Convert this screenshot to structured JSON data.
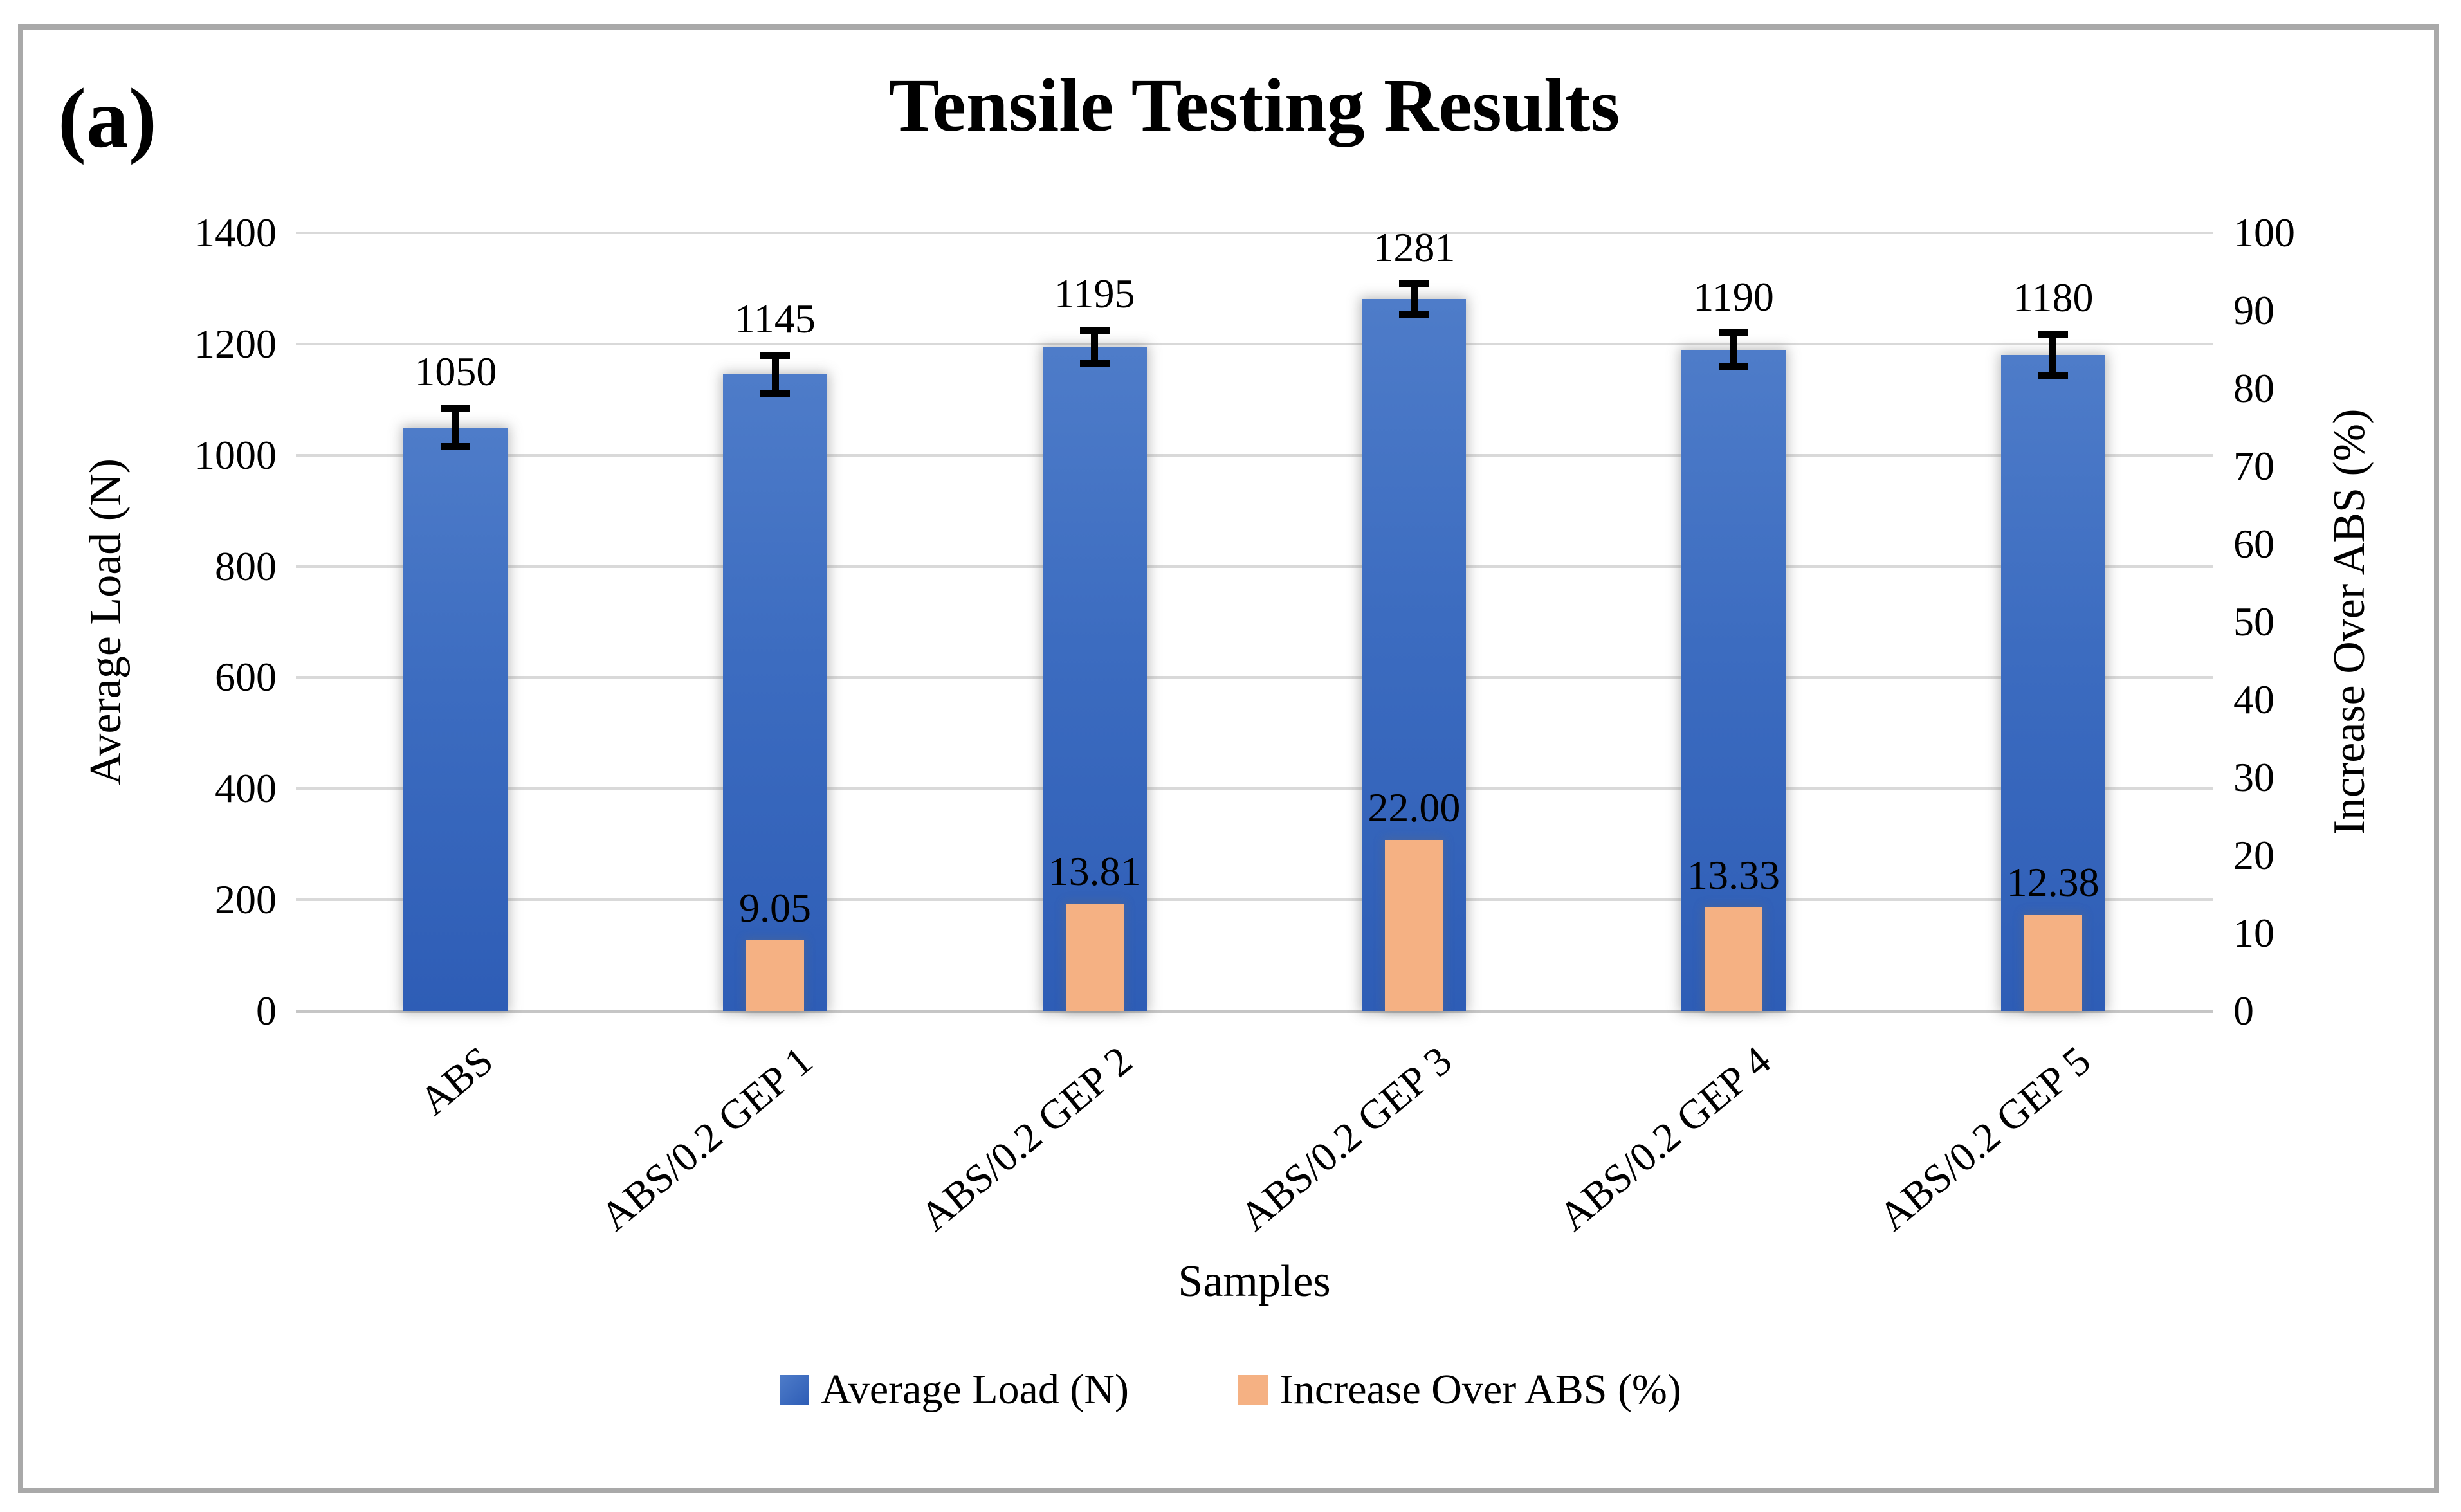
{
  "panel_label": "(a)",
  "title": "Tensile Testing Results",
  "x_axis_title": "Samples",
  "y_axis_left_title": "Average Load (N)",
  "y_axis_right_title": "Increase Over ABS (%)",
  "legend": {
    "items": [
      {
        "label": "Average Load (N)",
        "swatch": "blue-gradient-square"
      },
      {
        "label": "Increase Over ABS (%)",
        "swatch": "orange-square"
      }
    ]
  },
  "colors": {
    "bar_blue_top": "#4e7cc9",
    "bar_blue_bottom": "#2e5db6",
    "bar_orange": "#f5b183",
    "gridline": "#d9d9d9",
    "frame_border": "#a9a9a9",
    "error_bar": "#000000",
    "text": "#000000"
  },
  "chart_data": {
    "type": "bar",
    "title": "Tensile Testing Results",
    "categories": [
      "ABS",
      "ABS/0.2 GEP 1",
      "ABS/0.2 GEP 2",
      "ABS/0.2 GEP 3",
      "ABS/0.2 GEP 4",
      "ABS/0.2 GEP 5"
    ],
    "series": [
      {
        "name": "Average Load (N)",
        "axis": "left",
        "values": [
          1050,
          1145,
          1195,
          1281,
          1190,
          1180
        ],
        "data_labels": [
          "1050",
          "1145",
          "1195",
          "1281",
          "1190",
          "1180"
        ],
        "error_bars": [
          35,
          35,
          30,
          28,
          30,
          38
        ]
      },
      {
        "name": "Increase Over ABS (%)",
        "axis": "right",
        "values": [
          null,
          9.05,
          13.81,
          22.0,
          13.33,
          12.38
        ],
        "data_labels": [
          "",
          "9.05",
          "13.81",
          "22.00",
          "13.33",
          "12.38"
        ]
      }
    ],
    "xlabel": "Samples",
    "ylabel_left": "Average Load (N)",
    "ylabel_right": "Increase Over ABS (%)",
    "ylim_left": [
      0,
      1400
    ],
    "ytick_step_left": 200,
    "yticks_left": [
      "0",
      "200",
      "400",
      "600",
      "800",
      "1000",
      "1200",
      "1400"
    ],
    "ylim_right": [
      0,
      100
    ],
    "ytick_step_right": 10,
    "yticks_right": [
      "0",
      "10",
      "20",
      "30",
      "40",
      "50",
      "60",
      "70",
      "80",
      "90",
      "100"
    ],
    "grid": true,
    "legend_position": "bottom"
  }
}
